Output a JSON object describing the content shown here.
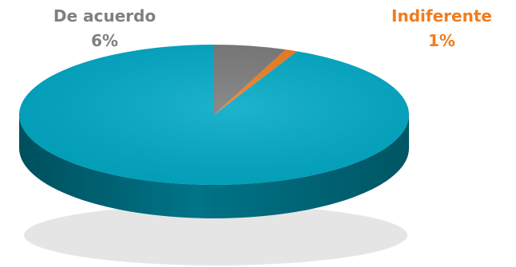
{
  "chart_data": {
    "type": "pie",
    "title": "",
    "slices": [
      {
        "label": "De acuerdo",
        "value": 6,
        "display": "6%",
        "color": "#7a7a7a",
        "label_color": "#7f7f7f"
      },
      {
        "label": "Indiferente",
        "value": 1,
        "display": "1%",
        "color": "#f07c1d",
        "label_color": "#f07c1d"
      },
      {
        "label": "",
        "value": 93,
        "display": "",
        "color": "#00a9c6",
        "label_color": "#00a9c6"
      }
    ],
    "start_angle_deg": 0,
    "three_d": true,
    "legend": "none"
  }
}
